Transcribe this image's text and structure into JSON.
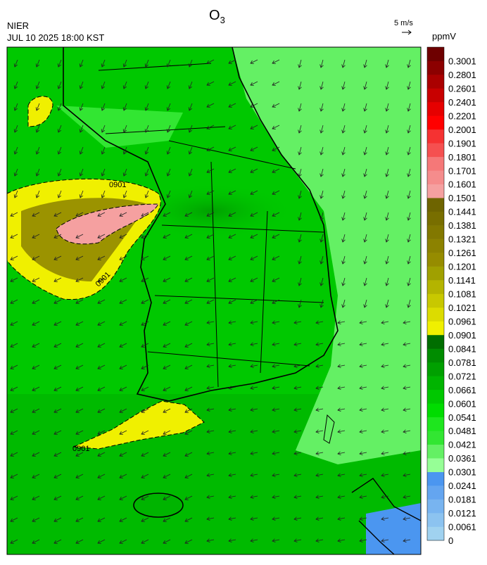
{
  "header": {
    "title": {
      "text": "O",
      "subscript": "3"
    },
    "agency": "NIER",
    "timestamp": "JUL 10 2025 18:00 KST",
    "wind_scale": "5 m/s"
  },
  "colorbar": {
    "unit": "ppmV",
    "labels": [
      "0",
      "0.0061",
      "0.0121",
      "0.0181",
      "0.0241",
      "0.0301",
      "0.0361",
      "0.0421",
      "0.0481",
      "0.0541",
      "0.0601",
      "0.0661",
      "0.0721",
      "0.0781",
      "0.0841",
      "0.0901",
      "0.0961",
      "0.1021",
      "0.1081",
      "0.1141",
      "0.1201",
      "0.1261",
      "0.1321",
      "0.1381",
      "0.1441",
      "0.1501",
      "0.1601",
      "0.1701",
      "0.1801",
      "0.1901",
      "0.2001",
      "0.2201",
      "0.2401",
      "0.2601",
      "0.2801",
      "0.3001"
    ],
    "colors": [
      "#a0d2f0",
      "#8cc3f0",
      "#78b4f0",
      "#64a5f0",
      "#4b96f0",
      "#96ff96",
      "#64f064",
      "#32e632",
      "#1ee61e",
      "#00dc00",
      "#00c800",
      "#00b400",
      "#00a000",
      "#008c00",
      "#006e00",
      "#f0f000",
      "#dcdc00",
      "#c8c800",
      "#b4b400",
      "#a0a000",
      "#968c00",
      "#8c8200",
      "#827800",
      "#786e00",
      "#6e6400",
      "#f5a0a0",
      "#f58c8c",
      "#f57878",
      "#f55050",
      "#f53232",
      "#ff0000",
      "#e60000",
      "#c80000",
      "#aa0000",
      "#8c0000",
      "#6e0000"
    ]
  },
  "map": {
    "contour_labels": [
      "0901",
      "0901",
      "0901"
    ]
  }
}
